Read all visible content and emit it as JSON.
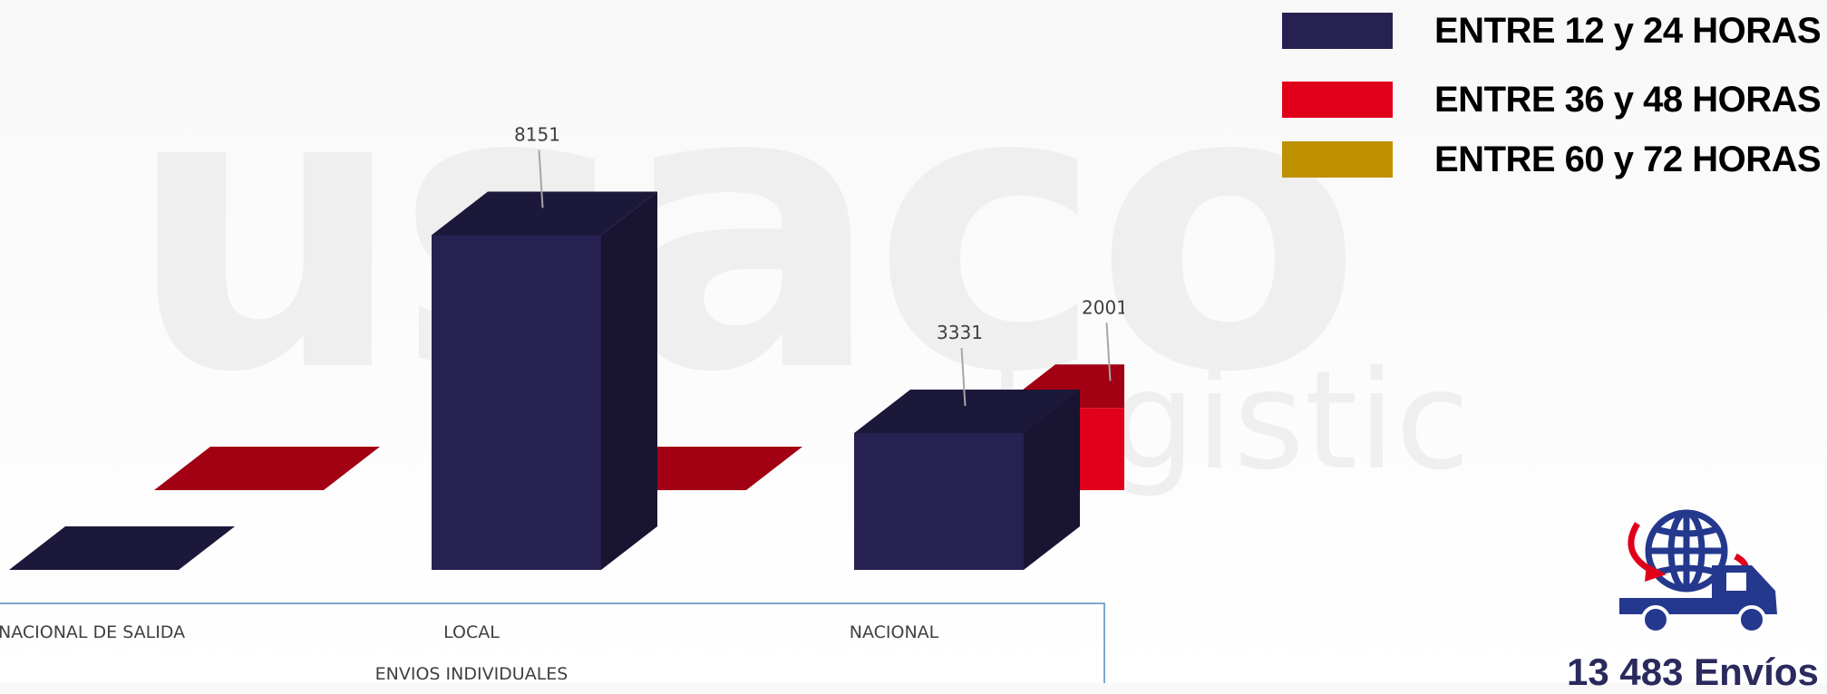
{
  "watermark": {
    "brand": "usaco",
    "sub": "logistic"
  },
  "chart_data": {
    "type": "bar",
    "style": "3d-clustered-column",
    "xlabel": "ENVIOS INDIVIDUALES",
    "categories": [
      "NACIONAL DE SALIDA",
      "LOCAL",
      "NACIONAL"
    ],
    "series": [
      {
        "name": "ENTRE 12 y 24 HORAS",
        "color": "#262150",
        "values": [
          0,
          8151,
          3331
        ]
      },
      {
        "name": "ENTRE 36 y 48 HORAS",
        "color": "#e1001a",
        "values": [
          0,
          0,
          2001
        ]
      },
      {
        "name": "ENTRE 60 y 72 HORAS",
        "color": "#bf9000",
        "values": [
          0,
          0,
          0
        ]
      }
    ],
    "data_labels": [
      {
        "series": 0,
        "category": 1,
        "text": "8151"
      },
      {
        "series": 0,
        "category": 2,
        "text": "3331"
      },
      {
        "series": 1,
        "category": 2,
        "text": "2001"
      }
    ],
    "ylim": [
      0,
      9000
    ],
    "grid": false,
    "legend_position": "top-right"
  },
  "summary": {
    "total_text": "13 483 Envíos",
    "icon": "globe-truck-icon"
  }
}
